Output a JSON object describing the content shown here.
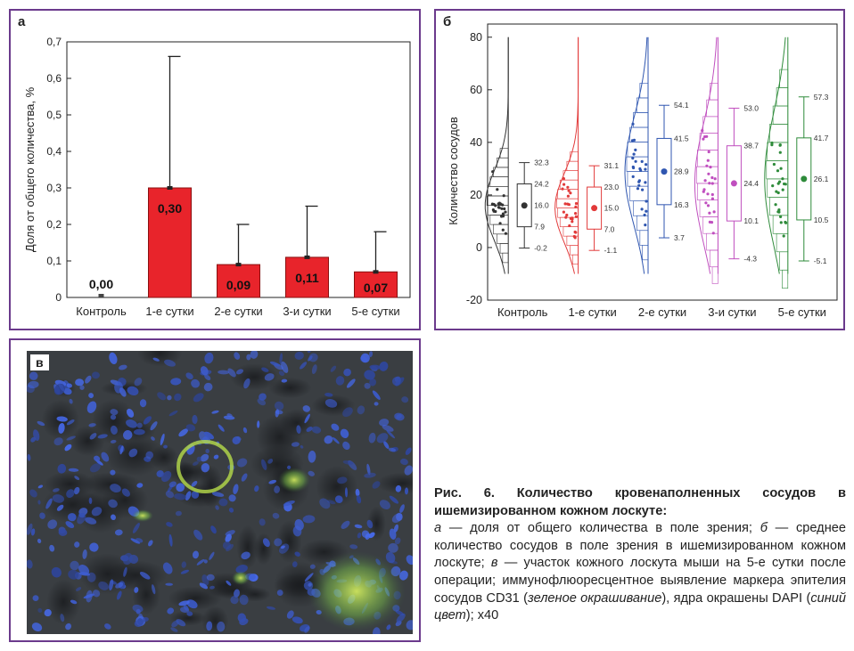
{
  "panel_a": {
    "letter": "а",
    "ylabel": "Доля от общего количества, %",
    "yticks": [
      "0",
      "0,1",
      "0,2",
      "0,3",
      "0,4",
      "0,5",
      "0,6",
      "0,7"
    ],
    "bar_color": "#e8242b"
  },
  "panel_b": {
    "letter": "б",
    "ylabel": "Количество сосудов",
    "yticks": [
      "-20",
      "0",
      "20",
      "40",
      "60",
      "80"
    ]
  },
  "panel_c": {
    "letter": "в"
  },
  "chart_data": [
    {
      "type": "bar",
      "ylabel": "Доля от общего количества, %",
      "ylim": [
        0,
        0.7
      ],
      "categories": [
        "Контроль",
        "1-е сутки",
        "2-е сутки",
        "3-и сутки",
        "5-е сутки"
      ],
      "values": [
        0.0,
        0.3,
        0.09,
        0.11,
        0.07
      ],
      "value_labels": [
        "0,00",
        "0,30",
        "0,09",
        "0,11",
        "0,07"
      ],
      "error_upper": [
        0.0,
        0.66,
        0.2,
        0.25,
        0.18
      ],
      "grid": false
    },
    {
      "type": "box",
      "ylabel": "Количество сосудов",
      "ylim": [
        -20,
        85
      ],
      "categories": [
        "Контроль",
        "1-е сутки",
        "2-е сутки",
        "3-и сутки",
        "5-е сутки"
      ],
      "series": [
        {
          "color": "#333333",
          "max_label": "32.3",
          "q3_label": "24.2",
          "mean_label": "16.0",
          "q1_label": "7.9",
          "min_label": "-0.2",
          "max": 32.3,
          "q3": 24.2,
          "mean": 16.0,
          "q1": 7.9,
          "min": -0.2
        },
        {
          "color": "#e23a3a",
          "max_label": "31.1",
          "q3_label": "23.0",
          "mean_label": "15.0",
          "q1_label": "7.0",
          "min_label": "-1.1",
          "max": 31.1,
          "q3": 23.0,
          "mean": 15.0,
          "q1": 7.0,
          "min": -1.1
        },
        {
          "color": "#2f56b0",
          "max_label": "54.1",
          "q3_label": "41.5",
          "mean_label": "28.9",
          "q1_label": "16.3",
          "min_label": "3.7",
          "max": 54.1,
          "q3": 41.5,
          "mean": 28.9,
          "q1": 16.3,
          "min": 3.7
        },
        {
          "color": "#c04fbf",
          "max_label": "53.0",
          "q3_label": "38.7",
          "mean_label": "24.4",
          "q1_label": "10.1",
          "min_label": "-4.3",
          "max": 53.0,
          "q3": 38.7,
          "mean": 24.4,
          "q1": 10.1,
          "min": -4.3
        },
        {
          "color": "#2e8b3a",
          "max_label": "57.3",
          "q3_label": "41.7",
          "mean_label": "26.1",
          "q1_label": "10.5",
          "min_label": "-5.1",
          "max": 57.3,
          "q3": 41.7,
          "mean": 26.1,
          "q1": 10.5,
          "min": -5.1
        }
      ]
    }
  ],
  "caption": {
    "title": "Рис. 6. Количество кровенаполненных сосудов в ишемизированном кожном лоскуте:",
    "part1": "а",
    "text1": " — доля от общего количества в поле зрения; ",
    "part2": "б",
    "text2": " — среднее количество сосудов в поле зрения в ишемизированном кожном лоскуте; ",
    "part3": "в",
    "text3": " — участок кожного лоскута мыши на 5-е сутки после операции; иммунофлюоресцентное выявление маркера эпителия сосудов CD31 (",
    "italic1": "зеленое окрашивание",
    "text4": "), ядра окрашены DAPI (",
    "italic2": "синий цвет",
    "text5": "); х40"
  }
}
